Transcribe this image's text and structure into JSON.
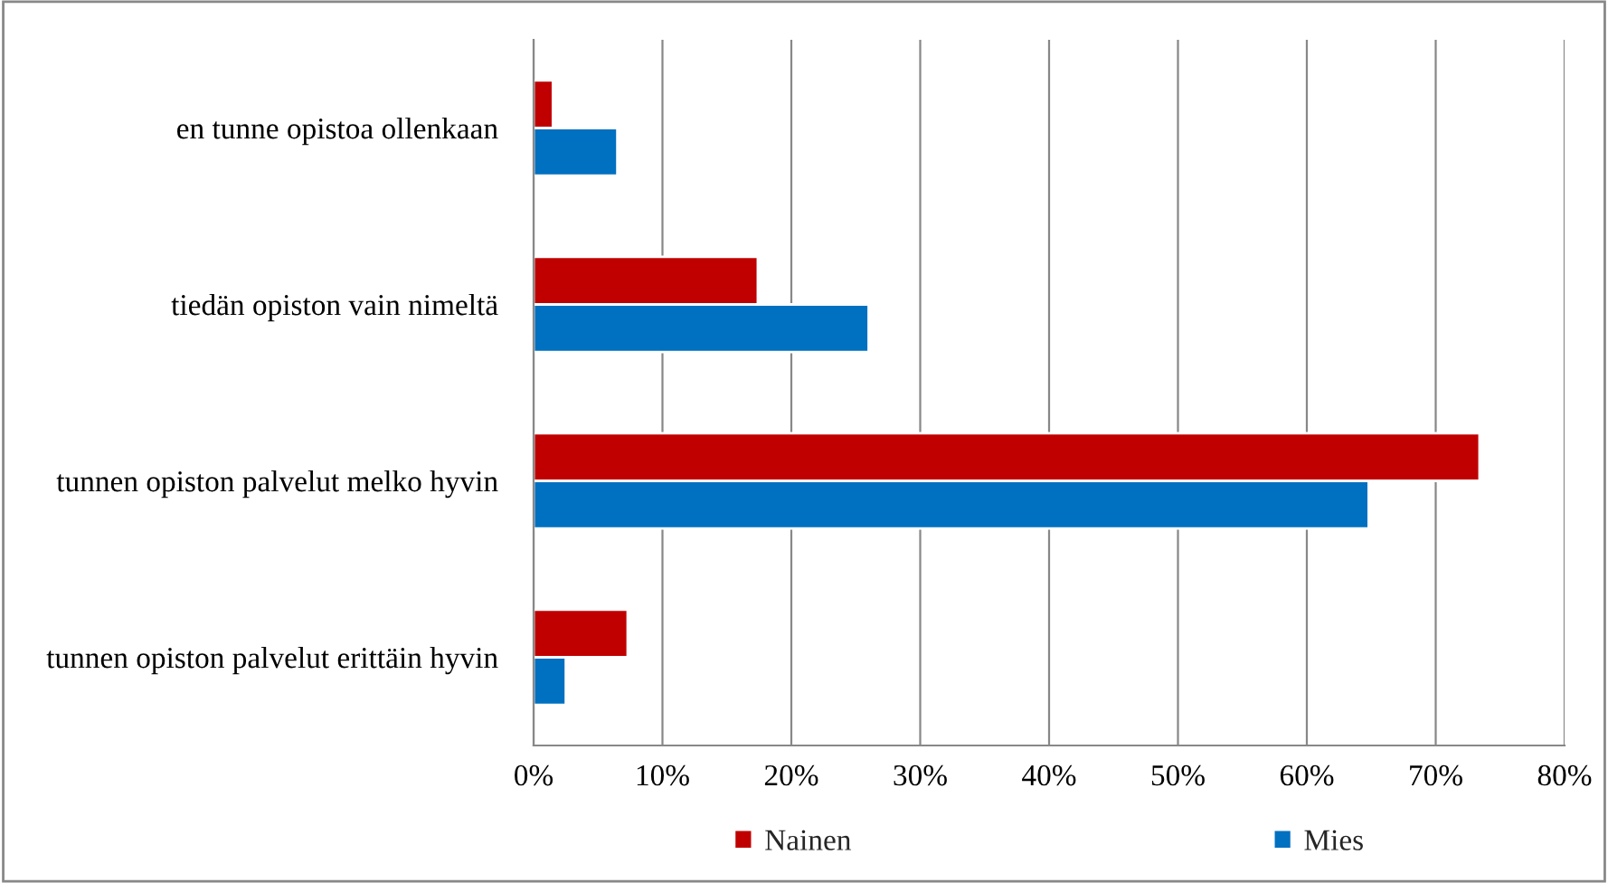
{
  "chart_data": {
    "type": "bar",
    "orientation": "horizontal",
    "categories": [
      "en tunne opistoa ollenkaan",
      "tiedän opiston vain nimeltä",
      "tunnen opiston palvelut melko hyvin",
      "tunnen opiston palvelut erittäin hyvin"
    ],
    "series": [
      {
        "name": "Nainen",
        "color": "#c00000",
        "values": [
          1.5,
          17.4,
          73.4,
          7.3
        ]
      },
      {
        "name": "Mies",
        "color": "#0070c0",
        "values": [
          6.5,
          26,
          64.8,
          2.5
        ]
      }
    ],
    "xlim": [
      0,
      80
    ],
    "xticks": [
      {
        "value": 0,
        "label": "0%"
      },
      {
        "value": 10,
        "label": "10%"
      },
      {
        "value": 20,
        "label": "20%"
      },
      {
        "value": 30,
        "label": "30%"
      },
      {
        "value": 40,
        "label": "40%"
      },
      {
        "value": 50,
        "label": "50%"
      },
      {
        "value": 60,
        "label": "60%"
      },
      {
        "value": 70,
        "label": "70%"
      },
      {
        "value": 80,
        "label": "80%"
      }
    ],
    "grid": "x",
    "legend": "bottom"
  }
}
